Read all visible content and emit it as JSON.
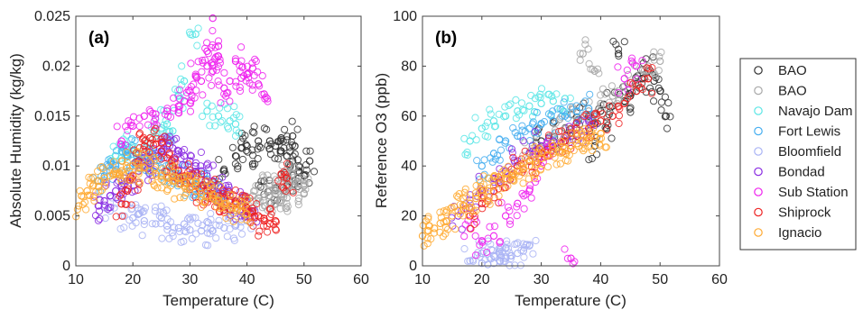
{
  "chart_data": [
    {
      "panel_label": "(a)",
      "type": "scatter",
      "xlabel": "Temperature (C)",
      "ylabel": "Absolute Humidity (kg/kg)",
      "xlim": [
        10,
        60
      ],
      "ylim": [
        0,
        0.025
      ],
      "x_ticks": [
        "10",
        "20",
        "30",
        "40",
        "50",
        "60"
      ],
      "y_ticks": [
        "0",
        "0.005",
        "0.01",
        "0.015",
        "0.02",
        "0.025"
      ],
      "series": [
        {
          "name": "BAO",
          "color": "#333333",
          "x": [
            36,
            38,
            40,
            42,
            44,
            45,
            46,
            47,
            48,
            49,
            50,
            51,
            43,
            45,
            47,
            49,
            41,
            39,
            46,
            48
          ],
          "y": [
            0.0095,
            0.011,
            0.012,
            0.0125,
            0.0125,
            0.012,
            0.0115,
            0.011,
            0.0105,
            0.0095,
            0.009,
            0.0105,
            0.0085,
            0.0078,
            0.008,
            0.0088,
            0.0102,
            0.0118,
            0.0128,
            0.013
          ]
        },
        {
          "name": "BAO",
          "color": "#a8a8a8",
          "x": [
            40,
            42,
            44,
            45,
            46,
            47,
            48,
            49,
            50,
            43,
            45,
            47,
            41,
            44,
            46,
            48,
            50
          ],
          "y": [
            0.0065,
            0.0068,
            0.007,
            0.0075,
            0.0072,
            0.0078,
            0.0085,
            0.0082,
            0.008,
            0.0078,
            0.0062,
            0.0068,
            0.007,
            0.0075,
            0.0088,
            0.0092,
            0.0072
          ]
        },
        {
          "name": "Navajo Dam",
          "color": "#5ce6e6",
          "x": [
            17,
            18,
            19,
            20,
            21,
            22,
            24,
            26,
            28,
            29,
            31,
            33,
            35,
            37,
            38,
            25,
            27,
            23
          ],
          "y": [
            0.011,
            0.0115,
            0.012,
            0.0118,
            0.0112,
            0.0108,
            0.013,
            0.0142,
            0.017,
            0.0185,
            0.0232,
            0.0155,
            0.015,
            0.0145,
            0.0142,
            0.0138,
            0.0135,
            0.0122
          ]
        },
        {
          "name": "Fort Lewis",
          "color": "#45aef0",
          "x": [
            14,
            15,
            16,
            17,
            18,
            19,
            20,
            21,
            22,
            23,
            24,
            25,
            26,
            27,
            28,
            29,
            30,
            31,
            32,
            33,
            34,
            35,
            36
          ],
          "y": [
            0.0085,
            0.009,
            0.0095,
            0.01,
            0.0105,
            0.011,
            0.0115,
            0.0112,
            0.0108,
            0.0105,
            0.01,
            0.0098,
            0.0095,
            0.0092,
            0.009,
            0.0088,
            0.0085,
            0.0082,
            0.008,
            0.0078,
            0.0075,
            0.0072,
            0.007
          ]
        },
        {
          "name": "Bloomfield",
          "color": "#aab4f5",
          "x": [
            16,
            18,
            20,
            22,
            24,
            26,
            28,
            30,
            32,
            34,
            36,
            38,
            40,
            21,
            25,
            29,
            33,
            37
          ],
          "y": [
            0.0055,
            0.005,
            0.0048,
            0.0045,
            0.0042,
            0.004,
            0.0038,
            0.0036,
            0.0035,
            0.0035,
            0.0038,
            0.004,
            0.0045,
            0.0052,
            0.0048,
            0.0042,
            0.0044,
            0.0048
          ]
        },
        {
          "name": "Bondad",
          "color": "#8a2be2",
          "x": [
            14,
            15,
            16,
            17,
            18,
            19,
            20,
            21,
            22,
            23,
            24,
            25,
            26,
            27,
            28,
            29,
            30,
            31,
            32,
            33,
            34,
            35,
            36,
            37,
            38,
            39,
            40,
            41
          ],
          "y": [
            0.006,
            0.0065,
            0.007,
            0.0075,
            0.008,
            0.0085,
            0.009,
            0.0095,
            0.01,
            0.0105,
            0.011,
            0.0115,
            0.012,
            0.0118,
            0.0115,
            0.011,
            0.0105,
            0.01,
            0.0095,
            0.009,
            0.0085,
            0.008,
            0.0075,
            0.007,
            0.0065,
            0.006,
            0.0058,
            0.0055
          ]
        },
        {
          "name": "Sub Station",
          "color": "#ee22ee",
          "x": [
            18,
            20,
            22,
            24,
            26,
            28,
            29,
            30,
            31,
            32,
            33,
            34,
            35,
            36,
            37,
            38,
            39,
            40,
            41,
            42,
            43,
            34,
            35,
            33
          ],
          "y": [
            0.0125,
            0.014,
            0.015,
            0.0152,
            0.0155,
            0.016,
            0.0165,
            0.0175,
            0.019,
            0.0185,
            0.02,
            0.0195,
            0.021,
            0.0178,
            0.0185,
            0.0205,
            0.0188,
            0.0192,
            0.0198,
            0.0182,
            0.0172,
            0.0248,
            0.022,
            0.0215
          ]
        },
        {
          "name": "Shiprock",
          "color": "#ee2222",
          "x": [
            18,
            19,
            20,
            21,
            22,
            23,
            24,
            25,
            26,
            27,
            28,
            29,
            30,
            31,
            32,
            33,
            34,
            35,
            36,
            37,
            38,
            39,
            40,
            41,
            42,
            43,
            44,
            45,
            46,
            47
          ],
          "y": [
            0.0062,
            0.0075,
            0.009,
            0.0105,
            0.012,
            0.0128,
            0.0122,
            0.0115,
            0.0108,
            0.01,
            0.0095,
            0.009,
            0.0085,
            0.008,
            0.0078,
            0.0075,
            0.0072,
            0.007,
            0.0068,
            0.0065,
            0.0062,
            0.006,
            0.0058,
            0.0055,
            0.005,
            0.0045,
            0.0042,
            0.0045,
            0.0092,
            0.0088
          ]
        },
        {
          "name": "Ignacio",
          "color": "#ffaa33",
          "x": [
            10.5,
            11,
            12,
            13,
            14,
            15,
            16,
            17,
            18,
            19,
            20,
            21,
            22,
            23,
            24,
            25,
            26,
            27,
            28,
            29,
            30,
            31,
            32,
            33,
            34,
            35,
            36,
            37,
            38,
            39,
            40
          ],
          "y": [
            0.006,
            0.007,
            0.0075,
            0.008,
            0.0085,
            0.0088,
            0.009,
            0.0092,
            0.0095,
            0.0098,
            0.01,
            0.0102,
            0.0098,
            0.0095,
            0.0092,
            0.009,
            0.0088,
            0.0085,
            0.0082,
            0.008,
            0.0078,
            0.0075,
            0.0072,
            0.007,
            0.0068,
            0.0065,
            0.0062,
            0.006,
            0.0058,
            0.0055,
            0.0052
          ]
        }
      ]
    },
    {
      "panel_label": "(b)",
      "type": "scatter",
      "xlabel": "Temperature (C)",
      "ylabel": "Reference O3 (ppb)",
      "xlim": [
        10,
        60
      ],
      "ylim": [
        0,
        100
      ],
      "x_ticks": [
        "10",
        "20",
        "30",
        "40",
        "50",
        "60"
      ],
      "y_ticks": [
        "0",
        "20",
        "40",
        "60",
        "80",
        "100"
      ],
      "series": [
        {
          "name": "BAO",
          "color": "#333333",
          "x": [
            30,
            32,
            34,
            36,
            38,
            40,
            42,
            44,
            45,
            46,
            47,
            48,
            49,
            50,
            51,
            43,
            41,
            39
          ],
          "y": [
            50,
            52,
            55,
            58,
            60,
            62,
            64,
            66,
            68,
            72,
            75,
            78,
            74,
            70,
            60,
            85,
            55,
            48
          ]
        },
        {
          "name": "BAO",
          "color": "#a8a8a8",
          "x": [
            28,
            30,
            32,
            34,
            36,
            38,
            40,
            42,
            44,
            46,
            48,
            50,
            37,
            39
          ],
          "y": [
            45,
            48,
            52,
            55,
            58,
            62,
            65,
            68,
            72,
            75,
            80,
            82,
            85,
            78
          ]
        },
        {
          "name": "Navajo Dam",
          "color": "#5ce6e6",
          "x": [
            18,
            20,
            22,
            24,
            26,
            28,
            30,
            32,
            34
          ],
          "y": [
            50,
            55,
            58,
            60,
            62,
            64,
            65,
            66,
            67
          ]
        },
        {
          "name": "Fort Lewis",
          "color": "#45aef0",
          "x": [
            20,
            22,
            24,
            26,
            28,
            30,
            32,
            34,
            36,
            38
          ],
          "y": [
            40,
            45,
            50,
            52,
            55,
            57,
            58,
            60,
            62,
            63
          ]
        },
        {
          "name": "Bloomfield",
          "color": "#aab4f5",
          "x": [
            18,
            20,
            21,
            22,
            23,
            24,
            25,
            26,
            27,
            28,
            20,
            22,
            24
          ],
          "y": [
            2,
            1,
            0.5,
            1,
            2,
            3,
            4,
            5,
            6,
            8,
            5,
            4,
            7
          ]
        },
        {
          "name": "Bondad",
          "color": "#8a2be2",
          "x": [
            16,
            18,
            20,
            22,
            24,
            26,
            28,
            30,
            32,
            34,
            36,
            38
          ],
          "y": [
            20,
            25,
            30,
            35,
            38,
            42,
            45,
            48,
            50,
            52,
            55,
            58
          ]
        },
        {
          "name": "Sub Station",
          "color": "#ee22ee",
          "x": [
            18,
            20,
            22,
            24,
            26,
            28,
            30,
            32,
            35,
            44,
            46
          ],
          "y": [
            15,
            10,
            12,
            20,
            25,
            30,
            40,
            45,
            3,
            75,
            80
          ]
        },
        {
          "name": "Shiprock",
          "color": "#ee2222",
          "x": [
            18,
            20,
            22,
            24,
            26,
            28,
            30,
            32,
            34,
            36,
            38,
            40,
            42,
            44,
            46,
            48
          ],
          "y": [
            20,
            25,
            30,
            35,
            40,
            42,
            45,
            48,
            50,
            52,
            55,
            58,
            60,
            65,
            70,
            75
          ]
        },
        {
          "name": "Ignacio",
          "color": "#ffaa33",
          "x": [
            10,
            11,
            12,
            13,
            14,
            15,
            16,
            17,
            18,
            19,
            20,
            21,
            22,
            23,
            24,
            25,
            26,
            27,
            28,
            29,
            30,
            31,
            32,
            33,
            34,
            35,
            36,
            37,
            38,
            39,
            40
          ],
          "y": [
            12,
            14,
            15,
            17,
            18,
            20,
            22,
            24,
            25,
            27,
            28,
            30,
            32,
            33,
            35,
            36,
            38,
            39,
            40,
            42,
            43,
            44,
            45,
            46,
            47,
            48,
            49,
            50,
            51,
            52,
            53
          ]
        }
      ]
    }
  ],
  "legend": {
    "placement": "right",
    "entries": [
      {
        "name": "BAO",
        "color": "#333333"
      },
      {
        "name": "BAO",
        "color": "#a8a8a8"
      },
      {
        "name": "Navajo Dam",
        "color": "#5ce6e6"
      },
      {
        "name": "Fort Lewis",
        "color": "#45aef0"
      },
      {
        "name": "Bloomfield",
        "color": "#aab4f5"
      },
      {
        "name": "Bondad",
        "color": "#8a2be2"
      },
      {
        "name": "Sub Station",
        "color": "#ee22ee"
      },
      {
        "name": "Shiprock",
        "color": "#ee2222"
      },
      {
        "name": "Ignacio",
        "color": "#ffaa33"
      }
    ]
  }
}
